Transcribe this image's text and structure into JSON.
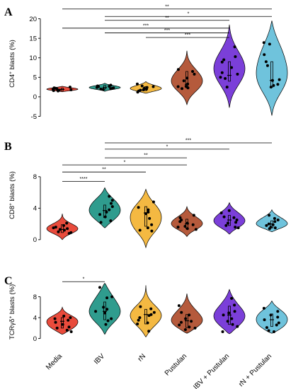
{
  "chart_data": [
    {
      "type": "violin",
      "panel_label": "A",
      "ylabel": "CD4+ blasts (%)",
      "ylabel_parts": {
        "main": "CD4",
        "sup": "+",
        "rest": " blasts (%)"
      },
      "yticks": [
        -5,
        0,
        5,
        10,
        15,
        20
      ],
      "ylim": [
        -6,
        23
      ],
      "categories": [
        "Media",
        "IBV",
        "rN",
        "Pustulan",
        "IBV + Pustulan",
        "rN + Pustulan"
      ],
      "colors": [
        "#e94b3c",
        "#2f9c8e",
        "#f4b942",
        "#b55a3c",
        "#7b3fd9",
        "#6fc3dc"
      ],
      "median": [
        1.9,
        2.4,
        2.1,
        3.2,
        5.5,
        4.2
      ],
      "q1": [
        1.6,
        2.0,
        1.6,
        2.3,
        4.0,
        2.5
      ],
      "q3": [
        2.2,
        2.9,
        2.6,
        6.5,
        9.0,
        9.0
      ],
      "violin_range": [
        [
          1.3,
          2.7
        ],
        [
          1.4,
          3.5
        ],
        [
          0.9,
          3.9
        ],
        [
          -2.0,
          11.8
        ],
        [
          -2.8,
          18.5
        ],
        [
          -4.8,
          19.5
        ]
      ],
      "points": [
        [
          1.9,
          2.1,
          1.6,
          1.5,
          2.0,
          2.3,
          1.8,
          2.2,
          1.7,
          2.5
        ],
        [
          2.2,
          2.7,
          2.4,
          1.9,
          3.0,
          2.6,
          2.1,
          2.8,
          2.3,
          2.0
        ],
        [
          1.2,
          2.4,
          1.8,
          2.8,
          2.0,
          1.5,
          3.3,
          2.6,
          1.7,
          2.2
        ],
        [
          2.3,
          2.7,
          4.1,
          5.8,
          7.0,
          6.5,
          2.6,
          3.3,
          2.1,
          4.8
        ],
        [
          2.5,
          4.7,
          5.8,
          7.5,
          8.9,
          9.5,
          10.3,
          12.8,
          5.0,
          6.2
        ],
        [
          2.5,
          3.2,
          4.2,
          4.4,
          8.0,
          9.0,
          10.8,
          13.5,
          13.9,
          2.9
        ]
      ],
      "significance": [
        {
          "from": "Media",
          "to": "rN + Pustulan",
          "label": "**",
          "y": 22.5
        },
        {
          "from": "IBV",
          "to": "rN + Pustulan",
          "label": "*",
          "y": 20.6
        },
        {
          "from": "IBV",
          "to": "IBV + Pustulan",
          "label": "**",
          "y": 19.6
        },
        {
          "from": "Media",
          "to": "IBV + Pustulan",
          "label": "***",
          "y": 17.6
        },
        {
          "from": "IBV",
          "to": "IBV + Pustulan",
          "label": "***",
          "y": 16.4
        },
        {
          "from": "rN",
          "to": "IBV + Pustulan",
          "label": "***",
          "y": 15.2
        }
      ]
    },
    {
      "type": "violin",
      "panel_label": "B",
      "ylabel": "CD8+ blasts (%)",
      "ylabel_parts": {
        "main": "CD8",
        "sup": "+",
        "rest": " blasts (%)"
      },
      "yticks": [
        0,
        4,
        8
      ],
      "ylim": [
        -1,
        12.3
      ],
      "categories": [
        "Media",
        "IBV",
        "rN",
        "Pustulan",
        "IBV + Pustulan",
        "rN + Pustulan"
      ],
      "colors": [
        "#e94b3c",
        "#2f9c8e",
        "#f4b942",
        "#b55a3c",
        "#7b3fd9",
        "#6fc3dc"
      ],
      "median": [
        1.3,
        3.7,
        3.4,
        2.0,
        2.5,
        2.0
      ],
      "q1": [
        0.9,
        2.8,
        1.7,
        1.4,
        1.8,
        1.5
      ],
      "q3": [
        1.9,
        4.4,
        4.2,
        2.6,
        3.1,
        2.4
      ],
      "violin_range": [
        [
          0.0,
          3.3
        ],
        [
          1.5,
          6.6
        ],
        [
          -1.0,
          6.4
        ],
        [
          0.4,
          4.2
        ],
        [
          0.7,
          4.7
        ],
        [
          1.0,
          3.8
        ]
      ],
      "points": [
        [
          0.9,
          1.5,
          1.3,
          1.0,
          1.8,
          0.8,
          2.1,
          1.6,
          1.2,
          1.4
        ],
        [
          2.4,
          3.5,
          4.2,
          5.5,
          3.8,
          2.9,
          4.6,
          5.0,
          3.2,
          2.2
        ],
        [
          1.2,
          1.5,
          1.9,
          3.5,
          3.8,
          4.8,
          2.7,
          4.1,
          3.3,
          1.1
        ],
        [
          1.3,
          1.7,
          2.5,
          2.8,
          1.6,
          2.1,
          3.1,
          1.4,
          2.3,
          1.9
        ],
        [
          1.6,
          2.2,
          2.8,
          3.4,
          2.1,
          1.8,
          3.7,
          2.5,
          2.9,
          1.5
        ],
        [
          1.6,
          2.0,
          2.3,
          1.8,
          3.1,
          1.5,
          2.5,
          1.9,
          2.7,
          1.4
        ]
      ],
      "significance": [
        {
          "from": "IBV",
          "to": "rN + Pustulan",
          "label": "***",
          "y": 12.3
        },
        {
          "from": "IBV",
          "to": "IBV + Pustulan",
          "label": "*",
          "y": 11.5
        },
        {
          "from": "IBV",
          "to": "Pustulan",
          "label": "**",
          "y": 10.4
        },
        {
          "from": "Media",
          "to": "Pustulan",
          "label": "*",
          "y": 9.5
        },
        {
          "from": "Media",
          "to": "rN",
          "label": "**",
          "y": 8.6
        },
        {
          "from": "Media",
          "to": "IBV",
          "label": "****",
          "y": 7.4
        }
      ]
    },
    {
      "type": "violin",
      "panel_label": "C",
      "ylabel": "TCRγδ+ blasts (%)",
      "ylabel_parts": {
        "main": "TCRγδ",
        "sup": "+",
        "rest": " blasts (%)"
      },
      "yticks": [
        0,
        4,
        8
      ],
      "ylim": [
        -1,
        11.2
      ],
      "categories": [
        "Media",
        "IBV",
        "rN",
        "Pustulan",
        "IBV + Pustulan",
        "rN + Pustulan"
      ],
      "xticks": [
        "Media",
        "IBV",
        "rN",
        "Pustulan",
        "IBV + Pustulan",
        "rN + Pustulan"
      ],
      "colors": [
        "#e94b3c",
        "#2f9c8e",
        "#f4b942",
        "#b55a3c",
        "#7b3fd9",
        "#6fc3dc"
      ],
      "median": [
        3.3,
        5.2,
        4.6,
        3.4,
        4.5,
        3.6
      ],
      "q1": [
        2.0,
        3.6,
        2.8,
        2.1,
        2.7,
        2.3
      ],
      "q3": [
        4.0,
        7.0,
        5.6,
        4.6,
        6.2,
        4.7
      ],
      "violin_range": [
        [
          0.8,
          6.0
        ],
        [
          0.8,
          10.6
        ],
        [
          0.3,
          10.2
        ],
        [
          1.0,
          8.6
        ],
        [
          0.9,
          9.4
        ],
        [
          1.0,
          7.2
        ]
      ],
      "points": [
        [
          1.6,
          2.2,
          2.7,
          3.1,
          3.5,
          4.0,
          4.3,
          2.0,
          1.3,
          3.8
        ],
        [
          2.7,
          3.8,
          4.9,
          5.6,
          6.0,
          7.8,
          8.0,
          3.4,
          9.8,
          5.2
        ],
        [
          1.4,
          2.8,
          3.5,
          4.6,
          5.0,
          5.7,
          6.1,
          4.0,
          3.0,
          4.4
        ],
        [
          1.7,
          2.2,
          2.6,
          3.1,
          3.8,
          4.5,
          5.0,
          6.3,
          2.0,
          3.3
        ],
        [
          1.3,
          2.3,
          3.3,
          4.5,
          5.2,
          6.4,
          7.7,
          3.8,
          2.7,
          4.9
        ],
        [
          1.5,
          2.1,
          3.0,
          3.6,
          4.5,
          5.2,
          5.8,
          2.6,
          4.1,
          1.3
        ]
      ],
      "significance": [
        {
          "from": "Media",
          "to": "IBV",
          "label": "*",
          "y": 10.9
        }
      ]
    }
  ]
}
